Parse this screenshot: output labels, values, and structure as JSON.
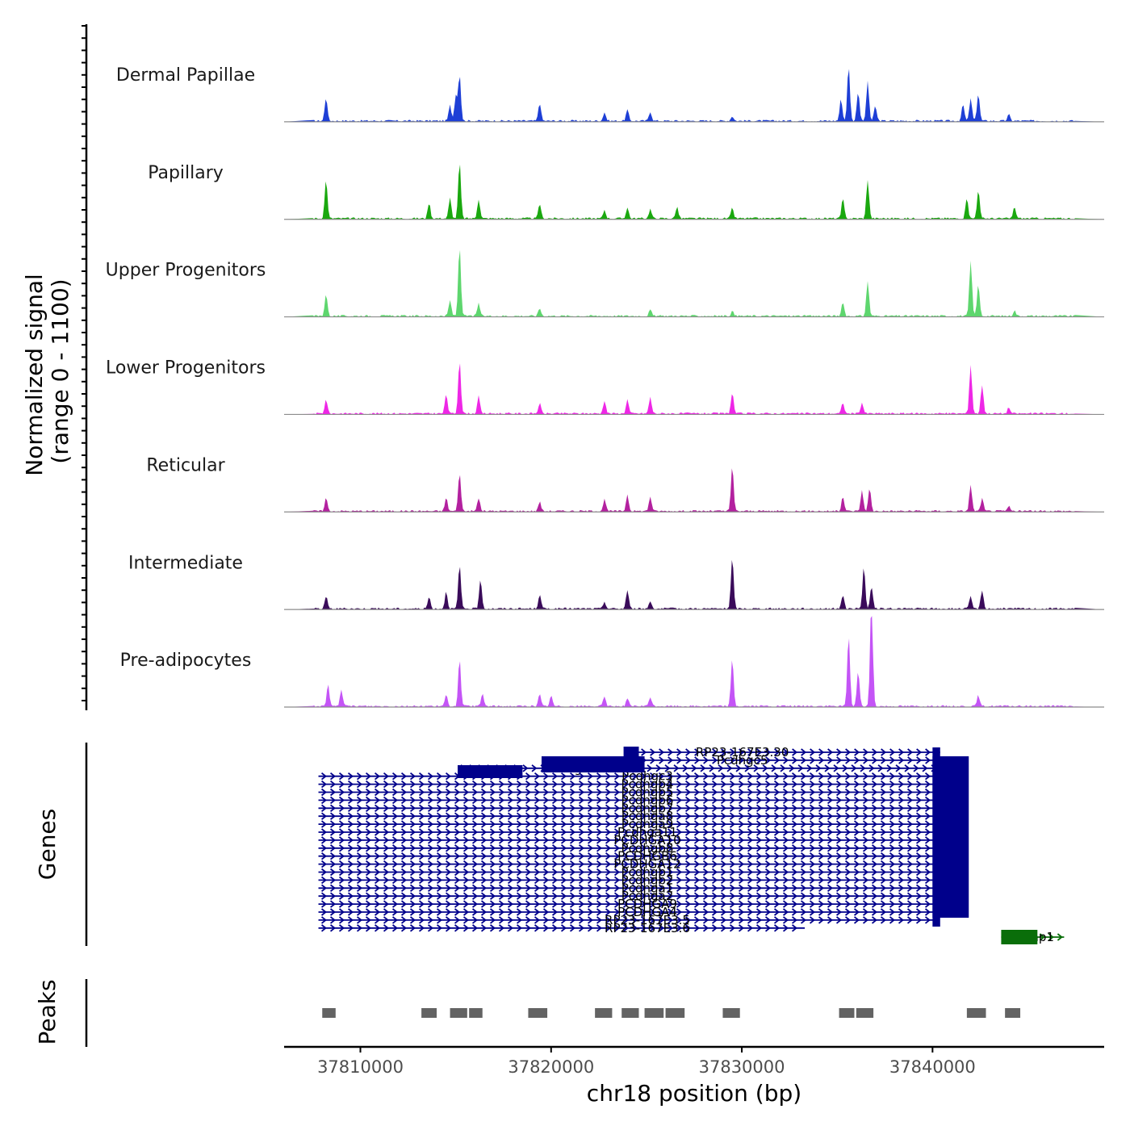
{
  "chart_data": {
    "type": "area",
    "title": "",
    "xlabel": "chr18 position (bp)",
    "ylabel": "Normalized signal\n(range 0 - 1100)",
    "ylabel_lines": [
      "Normalized signal",
      "(range 0 - 1100)"
    ],
    "signal_range": [
      0,
      1100
    ],
    "xlim": [
      37806000,
      37849000
    ],
    "x_ticks": [
      37810000,
      37820000,
      37830000,
      37840000
    ],
    "x_tick_labels": [
      "37810000",
      "37820000",
      "37830000",
      "37840000"
    ],
    "panel_titles": {
      "genes": "Genes",
      "peaks": "Peaks"
    },
    "series": [
      {
        "name": "Dermal Papillae",
        "color": "#1e3fd6",
        "peaks": [
          [
            37808200,
            300
          ],
          [
            37814700,
            200
          ],
          [
            37815000,
            330
          ],
          [
            37815200,
            600
          ],
          [
            37819400,
            230
          ],
          [
            37822800,
            110
          ],
          [
            37824000,
            140
          ],
          [
            37825200,
            120
          ],
          [
            37829500,
            60
          ],
          [
            37835200,
            280
          ],
          [
            37835600,
            700
          ],
          [
            37836100,
            380
          ],
          [
            37836600,
            500
          ],
          [
            37837000,
            190
          ],
          [
            37841600,
            210
          ],
          [
            37842000,
            280
          ],
          [
            37842400,
            350
          ],
          [
            37844000,
            80
          ]
        ]
      },
      {
        "name": "Papillary",
        "color": "#1aa80f",
        "peaks": [
          [
            37808200,
            500
          ],
          [
            37813600,
            200
          ],
          [
            37814700,
            260
          ],
          [
            37815200,
            720
          ],
          [
            37816200,
            250
          ],
          [
            37819400,
            190
          ],
          [
            37822800,
            110
          ],
          [
            37824000,
            140
          ],
          [
            37825200,
            120
          ],
          [
            37826600,
            150
          ],
          [
            37829500,
            130
          ],
          [
            37835300,
            250
          ],
          [
            37836600,
            500
          ],
          [
            37841800,
            270
          ],
          [
            37842400,
            370
          ],
          [
            37844300,
            150
          ]
        ]
      },
      {
        "name": "Upper Progenitors",
        "color": "#5ed66e",
        "peaks": [
          [
            37808200,
            280
          ],
          [
            37814700,
            200
          ],
          [
            37815200,
            900
          ],
          [
            37816200,
            160
          ],
          [
            37819400,
            100
          ],
          [
            37825200,
            80
          ],
          [
            37829500,
            60
          ],
          [
            37835300,
            170
          ],
          [
            37836600,
            450
          ],
          [
            37842000,
            700
          ],
          [
            37842400,
            400
          ],
          [
            37844300,
            70
          ]
        ]
      },
      {
        "name": "Lower Progenitors",
        "color": "#ee27e6",
        "peaks": [
          [
            37808200,
            180
          ],
          [
            37814500,
            250
          ],
          [
            37815200,
            690
          ],
          [
            37816200,
            220
          ],
          [
            37819400,
            130
          ],
          [
            37822800,
            170
          ],
          [
            37824000,
            180
          ],
          [
            37825200,
            210
          ],
          [
            37829500,
            270
          ],
          [
            37835300,
            140
          ],
          [
            37836300,
            140
          ],
          [
            37842000,
            620
          ],
          [
            37842600,
            370
          ],
          [
            37844000,
            80
          ]
        ]
      },
      {
        "name": "Reticular",
        "color": "#b3219f",
        "peaks": [
          [
            37808200,
            170
          ],
          [
            37814500,
            170
          ],
          [
            37815200,
            500
          ],
          [
            37816200,
            170
          ],
          [
            37819400,
            120
          ],
          [
            37822800,
            150
          ],
          [
            37824000,
            210
          ],
          [
            37825200,
            190
          ],
          [
            37829500,
            570
          ],
          [
            37835300,
            180
          ],
          [
            37836300,
            260
          ],
          [
            37836700,
            290
          ],
          [
            37842000,
            330
          ],
          [
            37842600,
            160
          ],
          [
            37844000,
            60
          ]
        ]
      },
      {
        "name": "Intermediate",
        "color": "#3a0b5a",
        "peaks": [
          [
            37808200,
            160
          ],
          [
            37813600,
            150
          ],
          [
            37814500,
            220
          ],
          [
            37815200,
            560
          ],
          [
            37816300,
            380
          ],
          [
            37819400,
            180
          ],
          [
            37822800,
            90
          ],
          [
            37824000,
            240
          ],
          [
            37825200,
            100
          ],
          [
            37829500,
            660
          ],
          [
            37835300,
            180
          ],
          [
            37836400,
            540
          ],
          [
            37836800,
            280
          ],
          [
            37842000,
            150
          ],
          [
            37842600,
            240
          ]
        ]
      },
      {
        "name": "Pre-adipocytes",
        "color": "#c454f6",
        "peaks": [
          [
            37808300,
            280
          ],
          [
            37809000,
            220
          ],
          [
            37814500,
            140
          ],
          [
            37815200,
            600
          ],
          [
            37816400,
            160
          ],
          [
            37819400,
            150
          ],
          [
            37820000,
            130
          ],
          [
            37822800,
            120
          ],
          [
            37824000,
            100
          ],
          [
            37825200,
            120
          ],
          [
            37829500,
            610
          ],
          [
            37835600,
            920
          ],
          [
            37836100,
            450
          ],
          [
            37836800,
            1460
          ],
          [
            37842400,
            140
          ]
        ]
      }
    ],
    "genes": [
      {
        "name": "RP23-167E3.30",
        "color": "#00008b",
        "start": 37824100,
        "end": 37840400
      },
      {
        "name": "Pcdhgc5",
        "color": "#00008b",
        "start": 37824100,
        "end": 37841600
      },
      {
        "name": "Pcdhgc4",
        "color": "#00008b",
        "start": 37815100,
        "end": 37841600
      },
      {
        "name": "Pcdhgc3",
        "color": "#00008b",
        "start": 37807800,
        "end": 37841600
      },
      {
        "name": "Pcdhgb4",
        "color": "#00008b",
        "start": 37807800,
        "end": 37841600
      },
      {
        "name": "Pcdhgb5",
        "color": "#00008b",
        "start": 37807800,
        "end": 37841600
      },
      {
        "name": "Pcdhgb6",
        "color": "#00008b",
        "start": 37807800,
        "end": 37841600
      },
      {
        "name": "Pcdhgb7",
        "color": "#00008b",
        "start": 37807800,
        "end": 37841600
      },
      {
        "name": "Pcdhga8",
        "color": "#00008b",
        "start": 37807800,
        "end": 37841600
      },
      {
        "name": "Pcdhga9",
        "color": "#00008b",
        "start": 37807800,
        "end": 37841600
      },
      {
        "name": "Pcdhga11",
        "color": "#00008b",
        "start": 37807800,
        "end": 37841600
      },
      {
        "name": "PCDHGA10",
        "color": "#00008b",
        "start": 37807800,
        "end": 37841600
      },
      {
        "name": "Pcdhgb8",
        "color": "#00008b",
        "start": 37807800,
        "end": 37841600
      },
      {
        "name": "PCDHGB6",
        "color": "#00008b",
        "start": 37807800,
        "end": 37841600
      },
      {
        "name": "PCDHGA12",
        "color": "#00008b",
        "start": 37807800,
        "end": 37841600
      },
      {
        "name": "Pcdhgb1",
        "color": "#00008b",
        "start": 37807800,
        "end": 37841600
      },
      {
        "name": "Pcdhgb2",
        "color": "#00008b",
        "start": 37807800,
        "end": 37841600
      },
      {
        "name": "Pcdhga1",
        "color": "#00008b",
        "start": 37807800,
        "end": 37841600
      },
      {
        "name": "Pcdhga2",
        "color": "#00008b",
        "start": 37807800,
        "end": 37841600
      },
      {
        "name": "PCDHGA9",
        "color": "#00008b",
        "start": 37807800,
        "end": 37841600
      },
      {
        "name": "PCDHGA4",
        "color": "#00008b",
        "start": 37807800,
        "end": 37841600
      },
      {
        "name": "RP23-167E3.5",
        "color": "#00008b",
        "start": 37807800,
        "end": 37840200
      },
      {
        "name": "RP23-167E3.6",
        "color": "#00008b",
        "start": 37807800,
        "end": 37833300
      },
      {
        "name": "Diap1",
        "color": "#0a6e0a",
        "start": 37843600,
        "end": 37846900
      }
    ],
    "peaks_track": [
      [
        37808000,
        37808700
      ],
      [
        37813200,
        37814000
      ],
      [
        37814700,
        37815600
      ],
      [
        37815700,
        37816400
      ],
      [
        37818800,
        37819800
      ],
      [
        37822300,
        37823200
      ],
      [
        37823700,
        37824600
      ],
      [
        37824900,
        37825900
      ],
      [
        37826000,
        37827000
      ],
      [
        37829000,
        37829900
      ],
      [
        37835100,
        37835900
      ],
      [
        37836000,
        37836900
      ],
      [
        37841800,
        37842800
      ],
      [
        37843800,
        37844600
      ]
    ]
  }
}
